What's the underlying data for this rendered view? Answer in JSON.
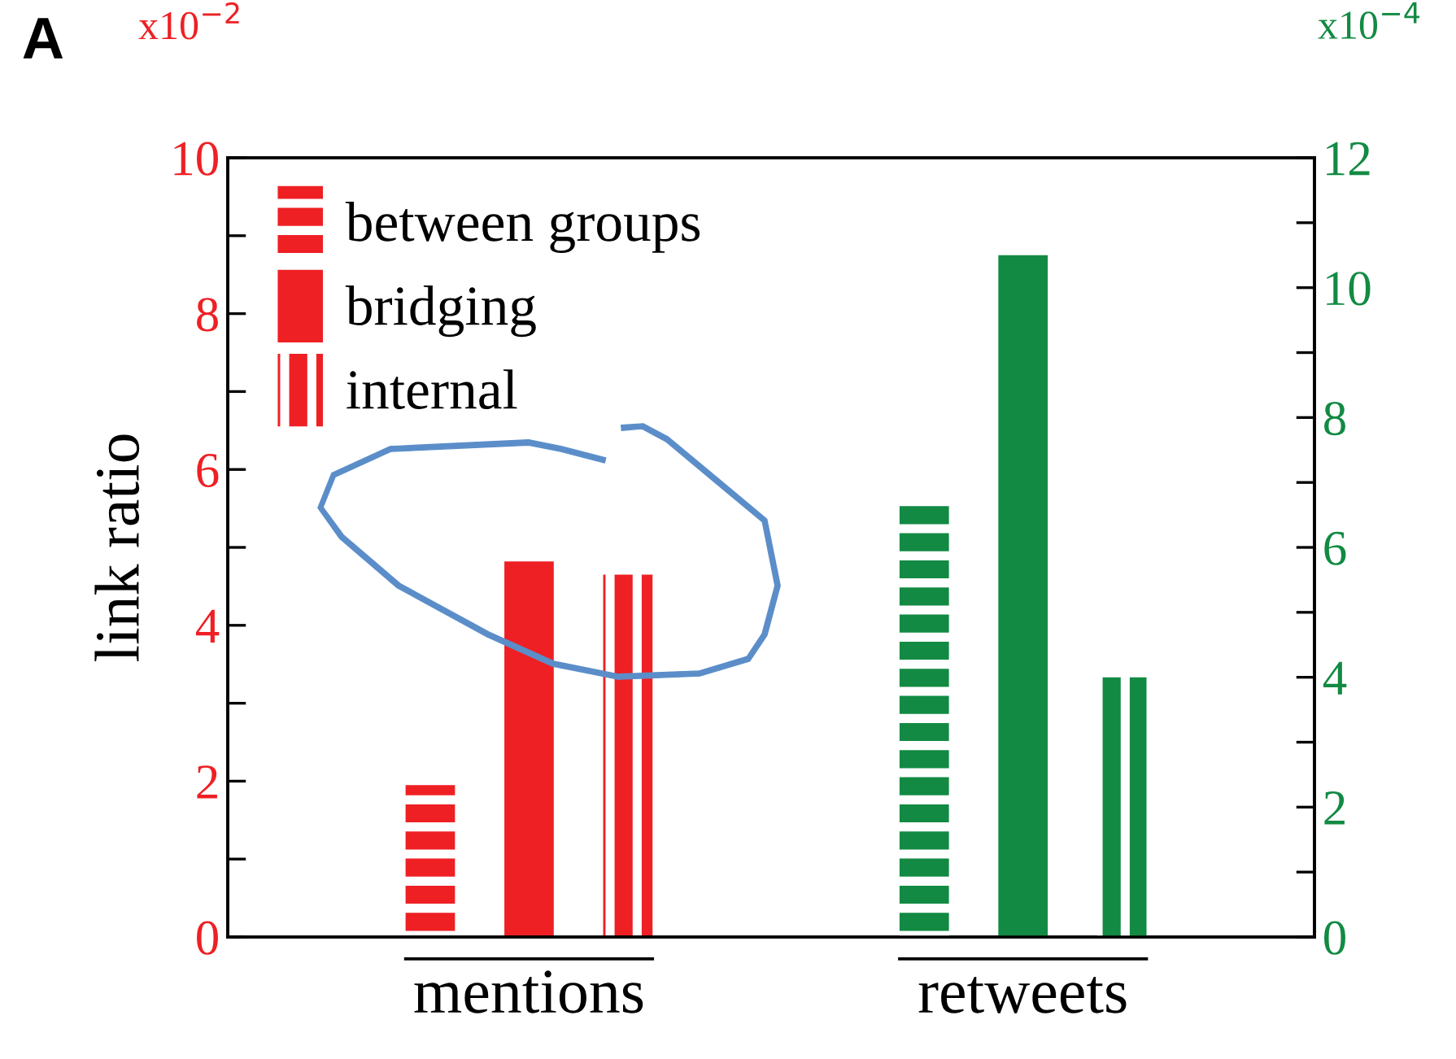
{
  "chart_data": {
    "type": "bar",
    "ylabel": "link ratio",
    "categories": [
      "mentions",
      "retweets"
    ],
    "series": [
      {
        "name": "between groups",
        "color": "#ee2024",
        "values": [
          1.95,
          null
        ]
      },
      {
        "name": "bridging",
        "color": "#ee2024",
        "values": [
          4.82,
          null
        ]
      },
      {
        "name": "internal",
        "color": "#ee2024",
        "values": [
          4.65,
          null
        ]
      },
      {
        "color": "#128a43",
        "values": [
          null,
          6.7
        ],
        "axis": "y2"
      },
      {
        "color": "#128a43",
        "values": [
          null,
          10.5
        ],
        "axis": "y2"
      },
      {
        "color": "#128a43",
        "values": [
          null,
          4.0
        ],
        "axis": "y2"
      }
    ],
    "ylim": [
      0,
      10
    ],
    "yticks": [
      0,
      {
        "value": 1,
        "label": null
      },
      2,
      {
        "value": 3,
        "label": null
      },
      4,
      {
        "value": 5,
        "label": null
      },
      6,
      {
        "value": 7,
        "label": null
      },
      8,
      {
        "value": 9,
        "label": null
      },
      10
    ],
    "y2lim": [
      0,
      12
    ],
    "y2ticks": [
      0,
      {
        "value": 1,
        "label": null
      },
      2,
      {
        "value": 3,
        "label": null
      },
      4,
      {
        "value": 5,
        "label": null
      },
      6,
      {
        "value": 7,
        "label": null
      },
      8,
      {
        "value": 9,
        "label": null
      },
      10,
      {
        "value": 11,
        "label": null
      },
      12
    ],
    "annotations": [
      "A",
      "x10$^{−2}$",
      "x10$^{−4}$"
    ],
    "legend": "top left",
    "grid": false
  }
}
